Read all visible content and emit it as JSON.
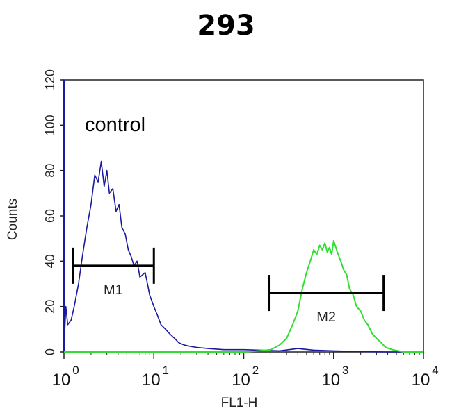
{
  "chart_data": {
    "type": "line",
    "title": "293",
    "xlabel": "FL1-H",
    "ylabel": "Counts",
    "x_scale": "log",
    "xlim": [
      1,
      10000
    ],
    "ylim": [
      0,
      120
    ],
    "x_ticks": [
      {
        "base": "10",
        "exp": "0",
        "value": 1
      },
      {
        "base": "10",
        "exp": "1",
        "value": 10
      },
      {
        "base": "10",
        "exp": "2",
        "value": 100
      },
      {
        "base": "10",
        "exp": "3",
        "value": 1000
      },
      {
        "base": "10",
        "exp": "4",
        "value": 10000
      }
    ],
    "y_ticks": [
      "0",
      "20",
      "40",
      "60",
      "80",
      "100",
      "120"
    ],
    "annotation": "control",
    "colors": {
      "control": "#1a1aa0",
      "sample": "#33dd33"
    },
    "gates": [
      {
        "label": "M1",
        "x_start": 1.25,
        "x_end": 10,
        "y": 38
      },
      {
        "label": "M2",
        "x_start": 190,
        "x_end": 3600,
        "y": 26
      }
    ],
    "series": [
      {
        "x": [
          1,
          1.05,
          1.1,
          1.2,
          1.3,
          1.45,
          1.6,
          1.8,
          2.0,
          2.2,
          2.4,
          2.6,
          2.8,
          3.0,
          3.2,
          3.5,
          3.8,
          4.1,
          4.4,
          4.8,
          5.2,
          5.6,
          6.0,
          6.5,
          7.0,
          7.5,
          8.0,
          8.5,
          9.0,
          10,
          11,
          12,
          13.5,
          15,
          17,
          19,
          22,
          25,
          30,
          40,
          60,
          100,
          150,
          250,
          400,
          600,
          1000,
          1500,
          2500,
          4000,
          10000
        ],
        "y": [
          2,
          20,
          12,
          14,
          20,
          30,
          42,
          55,
          65,
          78,
          75,
          84,
          73,
          80,
          70,
          72,
          62,
          65,
          55,
          52,
          45,
          42,
          38,
          40,
          33,
          34,
          35,
          30,
          25,
          20,
          16,
          12,
          10,
          8,
          6,
          4,
          3,
          2.5,
          2,
          1.5,
          1,
          1,
          0.8,
          0.5,
          1.5,
          0.8,
          0.5,
          0.3,
          0.1,
          0,
          0
        ]
      },
      {
        "x": [
          1,
          100,
          150,
          200,
          250,
          300,
          350,
          400,
          450,
          500,
          550,
          600,
          650,
          700,
          750,
          800,
          850,
          900,
          950,
          1000,
          1100,
          1200,
          1300,
          1400,
          1500,
          1650,
          1800,
          2000,
          2200,
          2400,
          2700,
          3000,
          3400,
          3800,
          4500,
          6000,
          10000
        ],
        "y": [
          0,
          0,
          0.5,
          1,
          3,
          6,
          12,
          18,
          28,
          35,
          40,
          45,
          43,
          47,
          45,
          48,
          44,
          46,
          43,
          49,
          44,
          40,
          36,
          34,
          28,
          25,
          20,
          18,
          14,
          12,
          8,
          6,
          4,
          2,
          1,
          0,
          0
        ]
      }
    ]
  }
}
